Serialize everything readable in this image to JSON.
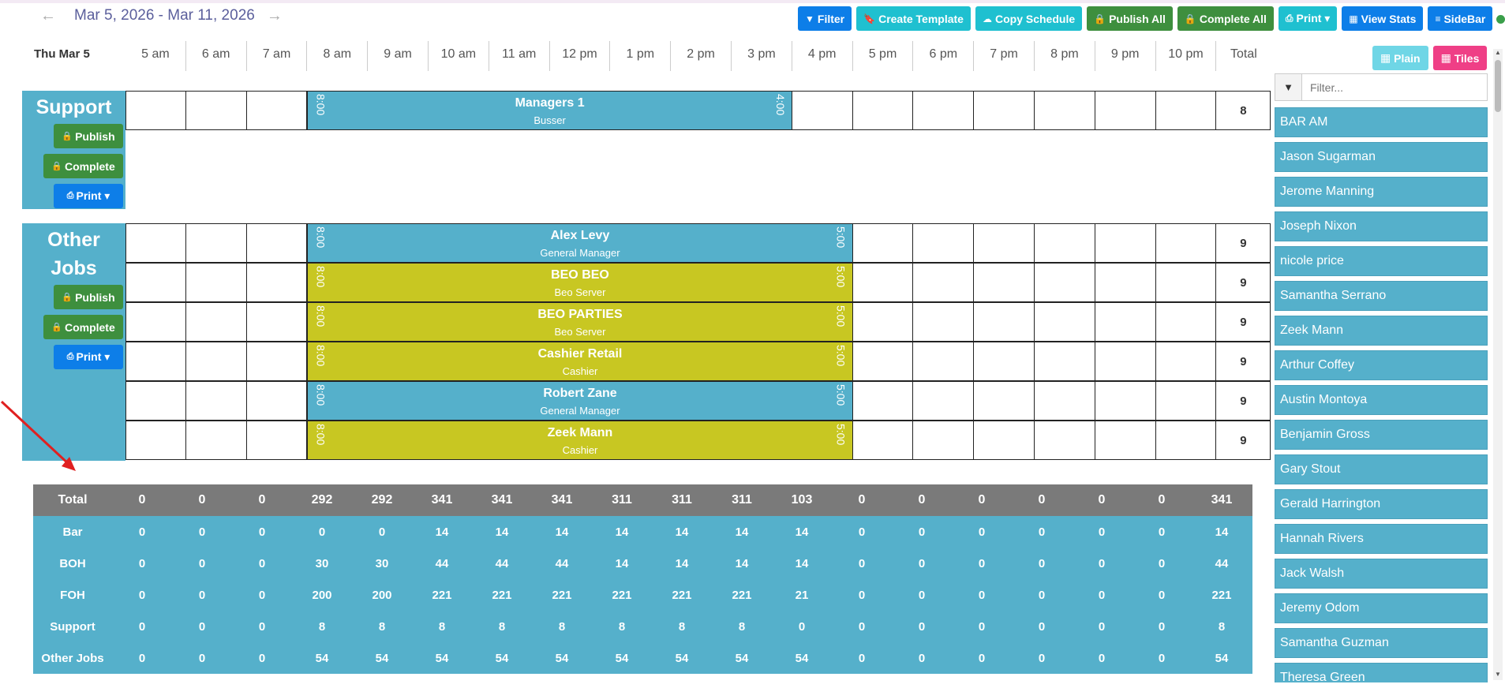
{
  "header": {
    "date_range": "Mar 5, 2026 - Mar 11, 2026",
    "prev_icon": "arrow-left-icon",
    "next_icon": "arrow-right-icon"
  },
  "toolbar": [
    {
      "name": "filter-button",
      "label": "Filter",
      "icon": "▼",
      "color": "b-blue"
    },
    {
      "name": "create-template-button",
      "label": "Create Template",
      "icon": "🔖",
      "color": "b-cyan"
    },
    {
      "name": "copy-schedule-button",
      "label": "Copy Schedule",
      "icon": "☁",
      "color": "b-cyan"
    },
    {
      "name": "publish-all-button",
      "label": "Publish All",
      "icon": "🔒",
      "color": "b-green"
    },
    {
      "name": "complete-all-button",
      "label": "Complete All",
      "icon": "🔒",
      "color": "b-green"
    },
    {
      "name": "print-dropdown-button",
      "label": "Print ▾",
      "icon": "⎙",
      "color": "b-cyan"
    },
    {
      "name": "view-stats-button",
      "label": "View Stats",
      "icon": "▦",
      "color": "b-blue"
    },
    {
      "name": "sidebar-toggle-button",
      "label": "SideBar",
      "icon": "≡",
      "color": "b-blue"
    }
  ],
  "timeline": {
    "day": "Thu Mar 5",
    "hours": [
      "5 am",
      "6 am",
      "7 am",
      "8 am",
      "9 am",
      "10 am",
      "11 am",
      "12 pm",
      "1 pm",
      "2 pm",
      "3 pm",
      "4 pm",
      "5 pm",
      "6 pm",
      "7 pm",
      "8 pm",
      "9 pm",
      "10 pm"
    ],
    "total_label": "Total"
  },
  "groups": [
    {
      "name_lines": [
        "Support"
      ],
      "publish": "Publish",
      "complete": "Complete",
      "print": "Print ▾",
      "shifts": [
        {
          "name": "Managers 1",
          "role": "Busser",
          "start": "8:00",
          "end": "4:00",
          "start_hour": 8,
          "end_hour": 16,
          "color": "blue",
          "total": "8"
        }
      ]
    },
    {
      "name_lines": [
        "Other",
        "Jobs"
      ],
      "publish": "Publish",
      "complete": "Complete",
      "print": "Print ▾",
      "shifts": [
        {
          "name": "Alex Levy",
          "role": "General Manager",
          "start": "8:00",
          "end": "5:00",
          "start_hour": 8,
          "end_hour": 17,
          "color": "blue",
          "total": "9"
        },
        {
          "name": "BEO BEO",
          "role": "Beo Server",
          "start": "8:00",
          "end": "5:00",
          "start_hour": 8,
          "end_hour": 17,
          "color": "yellow",
          "total": "9"
        },
        {
          "name": "BEO PARTIES",
          "role": "Beo Server",
          "start": "8:00",
          "end": "5:00",
          "start_hour": 8,
          "end_hour": 17,
          "color": "yellow",
          "total": "9"
        },
        {
          "name": "Cashier Retail",
          "role": "Cashier",
          "start": "8:00",
          "end": "5:00",
          "start_hour": 8,
          "end_hour": 17,
          "color": "yellow",
          "total": "9"
        },
        {
          "name": "Robert Zane",
          "role": "General Manager",
          "start": "8:00",
          "end": "5:00",
          "start_hour": 8,
          "end_hour": 17,
          "color": "blue",
          "total": "9"
        },
        {
          "name": "Zeek Mann",
          "role": "Cashier",
          "start": "8:00",
          "end": "5:00",
          "start_hour": 8,
          "end_hour": 17,
          "color": "yellow",
          "total": "9"
        }
      ]
    }
  ],
  "totals": [
    {
      "label": "Total",
      "values": [
        "0",
        "0",
        "0",
        "292",
        "292",
        "341",
        "341",
        "341",
        "311",
        "311",
        "311",
        "103",
        "0",
        "0",
        "0",
        "0",
        "0",
        "0",
        "341"
      ]
    },
    {
      "label": "Bar",
      "values": [
        "0",
        "0",
        "0",
        "0",
        "0",
        "14",
        "14",
        "14",
        "14",
        "14",
        "14",
        "14",
        "0",
        "0",
        "0",
        "0",
        "0",
        "0",
        "14"
      ]
    },
    {
      "label": "BOH",
      "values": [
        "0",
        "0",
        "0",
        "30",
        "30",
        "44",
        "44",
        "44",
        "14",
        "14",
        "14",
        "14",
        "0",
        "0",
        "0",
        "0",
        "0",
        "0",
        "44"
      ]
    },
    {
      "label": "FOH",
      "values": [
        "0",
        "0",
        "0",
        "200",
        "200",
        "221",
        "221",
        "221",
        "221",
        "221",
        "221",
        "21",
        "0",
        "0",
        "0",
        "0",
        "0",
        "0",
        "221"
      ]
    },
    {
      "label": "Support",
      "values": [
        "0",
        "0",
        "0",
        "8",
        "8",
        "8",
        "8",
        "8",
        "8",
        "8",
        "8",
        "0",
        "0",
        "0",
        "0",
        "0",
        "0",
        "0",
        "8"
      ]
    },
    {
      "label": "Other Jobs",
      "values": [
        "0",
        "0",
        "0",
        "54",
        "54",
        "54",
        "54",
        "54",
        "54",
        "54",
        "54",
        "54",
        "0",
        "0",
        "0",
        "0",
        "0",
        "0",
        "54"
      ]
    }
  ],
  "sidebar": {
    "plain": "Plain",
    "tiles": "Tiles",
    "filter_placeholder": "Filter...",
    "employees": [
      "BAR AM",
      "Jason Sugarman",
      "Jerome Manning",
      "Joseph Nixon",
      "nicole price",
      "Samantha Serrano",
      "Zeek Mann",
      "Arthur Coffey",
      "Austin Montoya",
      "Benjamin Gross",
      "Gary Stout",
      "Gerald Harrington",
      "Hannah Rivers",
      "Jack Walsh",
      "Jeremy Odom",
      "Samantha Guzman",
      "Theresa Green"
    ]
  }
}
